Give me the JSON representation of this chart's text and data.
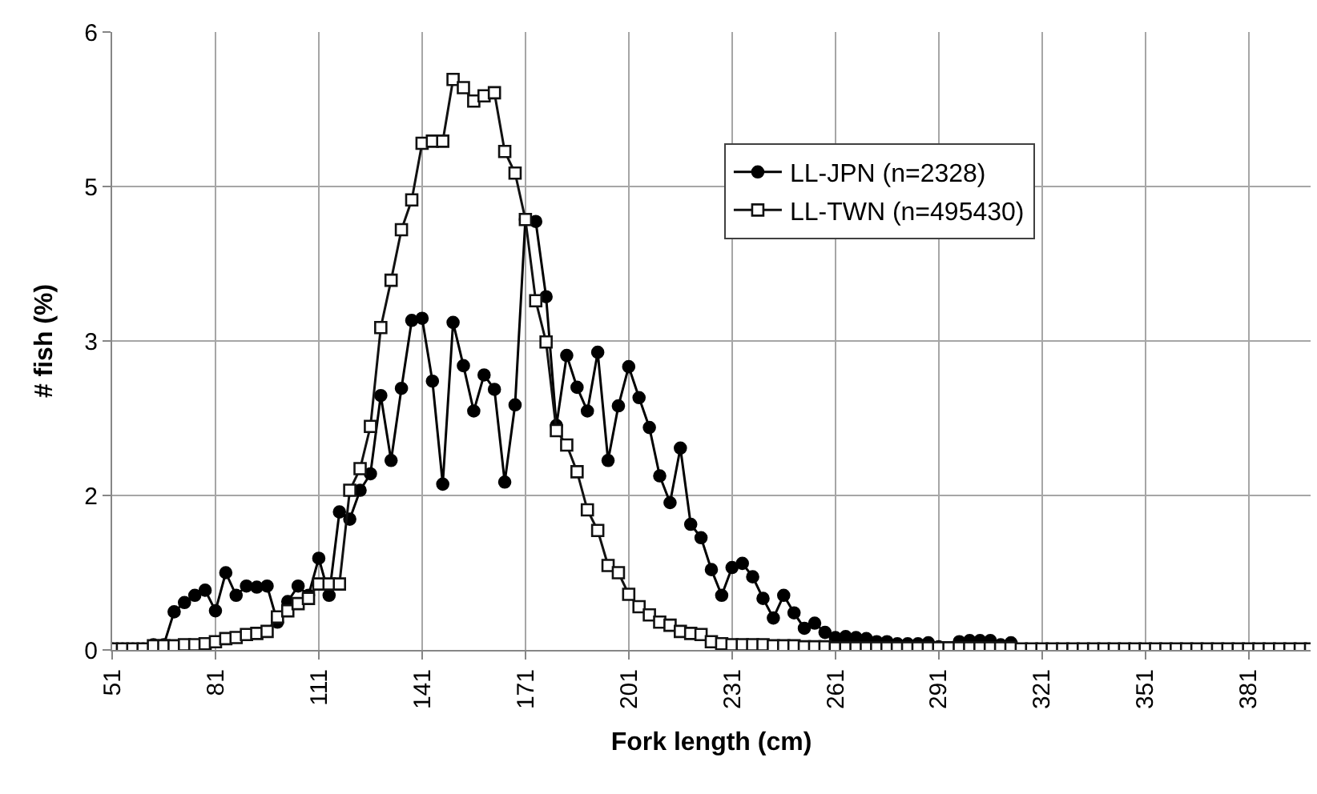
{
  "chart_data": {
    "type": "line",
    "xlabel": "Fork length (cm)",
    "ylabel": "# fish (%)",
    "x": [
      51,
      54,
      57,
      60,
      63,
      66,
      69,
      72,
      75,
      78,
      81,
      84,
      87,
      90,
      93,
      96,
      99,
      102,
      105,
      108,
      111,
      114,
      117,
      120,
      123,
      126,
      129,
      132,
      135,
      138,
      141,
      144,
      147,
      150,
      153,
      156,
      159,
      162,
      165,
      168,
      171,
      174,
      177,
      180,
      183,
      186,
      189,
      192,
      195,
      198,
      201,
      204,
      207,
      210,
      213,
      216,
      219,
      222,
      225,
      228,
      231,
      234,
      237,
      240,
      243,
      246,
      249,
      252,
      255,
      258,
      261,
      264,
      267,
      270,
      273,
      276,
      279,
      282,
      285,
      288,
      291,
      294,
      297,
      300,
      303,
      306,
      309,
      312,
      315,
      318,
      321,
      324,
      327,
      330,
      333,
      336,
      339,
      342,
      345,
      348,
      351,
      354,
      357,
      360,
      363,
      366,
      369,
      372,
      375,
      378,
      381,
      384,
      387,
      390,
      393,
      396,
      399
    ],
    "series": [
      {
        "name": "LL-JPN (n=2328)",
        "color": "#000000",
        "marker": "circle",
        "values": [
          0.01,
          0.01,
          0.01,
          0.01,
          0.05,
          0.05,
          0.37,
          0.46,
          0.53,
          0.58,
          0.38,
          0.75,
          0.53,
          0.62,
          0.61,
          0.62,
          0.27,
          0.47,
          0.62,
          0.53,
          0.89,
          0.53,
          1.34,
          1.27,
          1.55,
          1.71,
          2.47,
          1.84,
          2.54,
          3.2,
          3.22,
          2.61,
          1.61,
          3.18,
          2.76,
          2.32,
          2.67,
          2.53,
          1.63,
          2.38,
          4.18,
          4.16,
          3.43,
          2.18,
          2.86,
          2.55,
          2.32,
          2.89,
          1.84,
          2.37,
          2.75,
          2.45,
          2.16,
          1.69,
          1.43,
          1.96,
          1.22,
          1.09,
          0.78,
          0.53,
          0.8,
          0.84,
          0.71,
          0.5,
          0.31,
          0.53,
          0.36,
          0.21,
          0.26,
          0.17,
          0.12,
          0.13,
          0.12,
          0.11,
          0.08,
          0.08,
          0.06,
          0.06,
          0.06,
          0.07,
          0.03,
          0.02,
          0.08,
          0.09,
          0.09,
          0.09,
          0.05,
          0.07,
          0,
          0,
          0,
          0,
          0,
          0,
          0,
          0,
          0,
          0,
          0,
          0,
          0,
          0,
          0,
          0,
          0,
          0,
          0,
          0,
          0,
          0,
          0,
          0,
          0,
          0,
          0,
          0,
          0
        ]
      },
      {
        "name": "LL-TWN (n=495430)",
        "color": "#111111",
        "marker": "square",
        "values": [
          0.01,
          0.01,
          0.01,
          0.01,
          0.04,
          0.04,
          0.04,
          0.05,
          0.05,
          0.06,
          0.08,
          0.11,
          0.12,
          0.15,
          0.16,
          0.18,
          0.32,
          0.38,
          0.45,
          0.5,
          0.64,
          0.64,
          0.64,
          1.55,
          1.76,
          2.17,
          3.13,
          3.59,
          4.08,
          4.37,
          4.92,
          4.94,
          4.94,
          5.54,
          5.46,
          5.33,
          5.38,
          5.41,
          4.84,
          4.63,
          4.18,
          3.39,
          2.99,
          2.13,
          1.99,
          1.73,
          1.36,
          1.16,
          0.82,
          0.75,
          0.54,
          0.42,
          0.34,
          0.27,
          0.24,
          0.18,
          0.16,
          0.15,
          0.08,
          0.06,
          0.05,
          0.05,
          0.05,
          0.05,
          0.04,
          0.04,
          0.04,
          0.03,
          0.03,
          0.03,
          0.02,
          0.02,
          0.02,
          0.02,
          0.02,
          0.02,
          0.02,
          0.02,
          0.02,
          0.02,
          0.02,
          0.02,
          0.02,
          0.02,
          0.02,
          0.02,
          0.02,
          0.02,
          0.01,
          0.01,
          0.01,
          0.01,
          0.01,
          0.01,
          0.01,
          0.01,
          0.01,
          0.01,
          0.01,
          0.01,
          0.01,
          0.01,
          0.01,
          0.01,
          0.01,
          0.01,
          0.01,
          0.01,
          0.01,
          0.01,
          0.01,
          0.01,
          0.01,
          0.01,
          0.01,
          0.01,
          0.01
        ]
      }
    ],
    "xlim": [
      51,
      399
    ],
    "xticks": [
      51,
      81,
      111,
      141,
      171,
      201,
      231,
      261,
      291,
      321,
      351,
      381
    ],
    "ylim": [
      0,
      6
    ],
    "yticks": [
      0,
      {
        "value": 1.5,
        "label": "2"
      },
      3,
      {
        "value": 4.5,
        "label": "5"
      },
      6
    ],
    "grid": true,
    "legend": "top right",
    "line_style": "solid"
  }
}
